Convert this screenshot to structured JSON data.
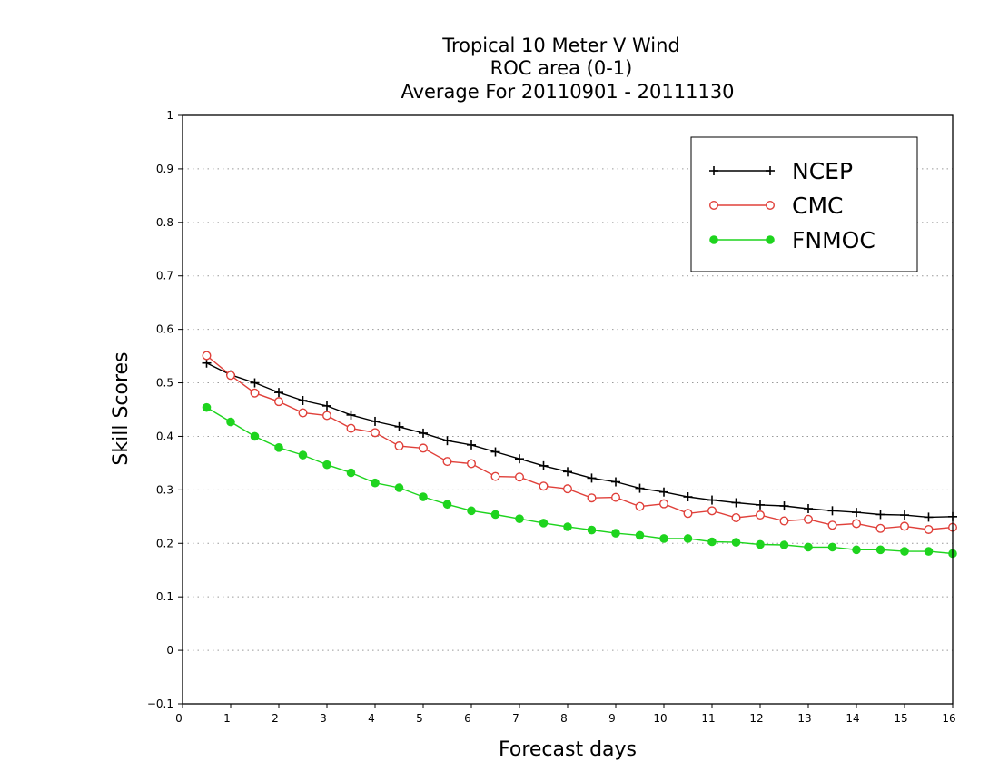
{
  "chart_data": {
    "type": "line",
    "title": [
      "Tropical 10 Meter V Wind",
      "ROC area (0-1)",
      "Average For 20110901 - 20111130"
    ],
    "xlabel": "Forecast days",
    "ylabel": "Skill Scores",
    "xlim": [
      0,
      16
    ],
    "ylim": [
      -0.1,
      1
    ],
    "x_ticks": [
      "0",
      "1",
      "2",
      "3",
      "4",
      "5",
      "6",
      "7",
      "8",
      "9",
      "10",
      "11",
      "12",
      "13",
      "14",
      "15",
      "16"
    ],
    "y_ticks": [
      "−0.1",
      "0",
      "0.1",
      "0.2",
      "0.3",
      "0.4",
      "0.5",
      "0.6",
      "0.7",
      "0.8",
      "0.9",
      "1"
    ],
    "grid": "horizontal-dotted",
    "legend_position": "top-right",
    "x": [
      0.5,
      1,
      1.5,
      2,
      2.5,
      3,
      3.5,
      4,
      4.5,
      5,
      5.5,
      6,
      6.5,
      7,
      7.5,
      8,
      8.5,
      9,
      9.5,
      10,
      10.5,
      11,
      11.5,
      12,
      12.5,
      13,
      13.5,
      14,
      14.5,
      15,
      15.5,
      16
    ],
    "series": [
      {
        "name": "NCEP",
        "color": "#000000",
        "marker": "plus",
        "values": [
          0.537,
          0.515,
          0.5,
          0.482,
          0.467,
          0.457,
          0.44,
          0.428,
          0.418,
          0.406,
          0.392,
          0.384,
          0.371,
          0.358,
          0.345,
          0.334,
          0.322,
          0.315,
          0.303,
          0.296,
          0.287,
          0.281,
          0.276,
          0.272,
          0.27,
          0.265,
          0.261,
          0.258,
          0.254,
          0.253,
          0.249,
          0.25
        ]
      },
      {
        "name": "CMC",
        "color": "#e0403a",
        "marker": "open-circle",
        "values": [
          0.551,
          0.514,
          0.481,
          0.465,
          0.444,
          0.439,
          0.415,
          0.407,
          0.382,
          0.378,
          0.353,
          0.349,
          0.325,
          0.324,
          0.307,
          0.302,
          0.285,
          0.286,
          0.269,
          0.274,
          0.256,
          0.261,
          0.248,
          0.253,
          0.242,
          0.245,
          0.234,
          0.237,
          0.228,
          0.232,
          0.226,
          0.23
        ]
      },
      {
        "name": "FNMOC",
        "color": "#1ed41e",
        "marker": "filled-circle",
        "values": [
          0.454,
          0.427,
          0.4,
          0.379,
          0.365,
          0.347,
          0.332,
          0.313,
          0.304,
          0.287,
          0.273,
          0.261,
          0.254,
          0.246,
          0.238,
          0.231,
          0.225,
          0.219,
          0.215,
          0.209,
          0.209,
          0.203,
          0.202,
          0.198,
          0.197,
          0.193,
          0.193,
          0.188,
          0.188,
          0.185,
          0.185,
          0.181
        ]
      }
    ]
  }
}
